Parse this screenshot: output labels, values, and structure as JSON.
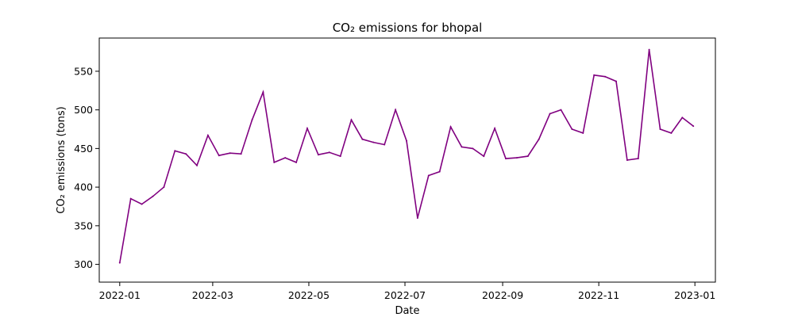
{
  "chart_data": {
    "type": "line",
    "title": "CO₂ emissions for bhopal",
    "xlabel": "Date",
    "ylabel": "CO₂ emissions (tons)",
    "x_start": "2022-01-01",
    "x_step": "weekly",
    "xlim": [
      "2021-12-19",
      "2023-01-14"
    ],
    "ylim": [
      277,
      593
    ],
    "x_ticks": [
      "2022-01-01",
      "2022-03-01",
      "2022-05-01",
      "2022-07-01",
      "2022-09-01",
      "2022-11-01",
      "2023-01-01"
    ],
    "y_ticks": [
      300,
      350,
      400,
      450,
      500,
      550
    ],
    "grid": false,
    "legend": "none",
    "series": [
      {
        "color": "#800080",
        "x": [
          "2022-01-01",
          "2022-01-08",
          "2022-01-15",
          "2022-01-22",
          "2022-01-29",
          "2022-02-05",
          "2022-02-12",
          "2022-02-19",
          "2022-02-26",
          "2022-03-05",
          "2022-03-12",
          "2022-03-19",
          "2022-03-26",
          "2022-04-02",
          "2022-04-09",
          "2022-04-16",
          "2022-04-23",
          "2022-04-30",
          "2022-05-07",
          "2022-05-14",
          "2022-05-21",
          "2022-05-28",
          "2022-06-04",
          "2022-06-11",
          "2022-06-18",
          "2022-06-25",
          "2022-07-02",
          "2022-07-09",
          "2022-07-16",
          "2022-07-23",
          "2022-07-30",
          "2022-08-06",
          "2022-08-13",
          "2022-08-20",
          "2022-08-27",
          "2022-09-03",
          "2022-09-10",
          "2022-09-17",
          "2022-09-24",
          "2022-10-01",
          "2022-10-08",
          "2022-10-15",
          "2022-10-22",
          "2022-10-29",
          "2022-11-05",
          "2022-11-12",
          "2022-11-19",
          "2022-11-26",
          "2022-12-03",
          "2022-12-10",
          "2022-12-17",
          "2022-12-24",
          "2022-12-31"
        ],
        "values": [
          302,
          385,
          378,
          388,
          400,
          447,
          443,
          428,
          467,
          441,
          444,
          443,
          487,
          523,
          432,
          438,
          432,
          476,
          442,
          445,
          440,
          487,
          462,
          458,
          455,
          500,
          460,
          360,
          415,
          420,
          478,
          452,
          450,
          440,
          476,
          437,
          438,
          440,
          462,
          495,
          500,
          475,
          470,
          545,
          543,
          537,
          435,
          437,
          578,
          475,
          470,
          490,
          479
        ]
      }
    ]
  }
}
